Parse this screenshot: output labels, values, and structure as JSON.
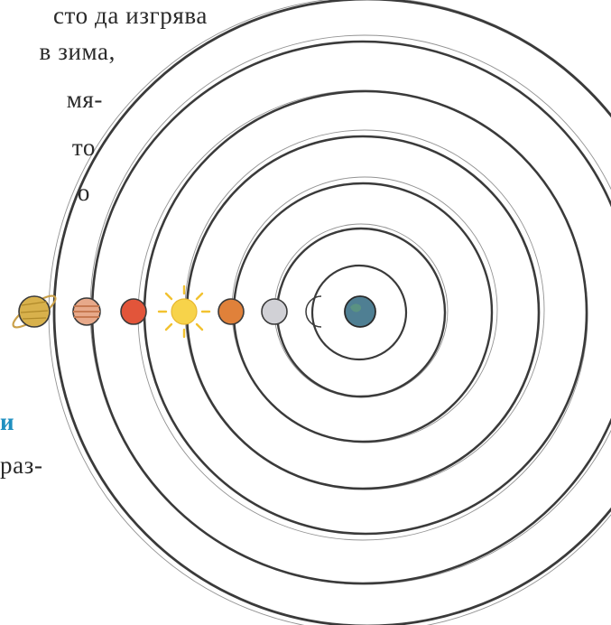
{
  "text_fragments": [
    "сто да изгрява",
    "в зима,",
    "мя-",
    "то",
    "о",
    "и",
    "раз-"
  ],
  "colors": {
    "orbit_ink": "#3a3a3a",
    "accent_text": "#1f8fc0",
    "earth": "#4f7f93",
    "moon": "#f2d27a",
    "sun": "#f7d34a",
    "mercury": "#d1d1d6",
    "venus": "#e0813a",
    "mars": "#e2553a",
    "jupiter": "#e7a98a",
    "saturn": "#d8b14c"
  },
  "celestial_bodies": [
    "saturn",
    "jupiter",
    "mars",
    "sun",
    "venus",
    "mercury",
    "moon",
    "earth"
  ]
}
